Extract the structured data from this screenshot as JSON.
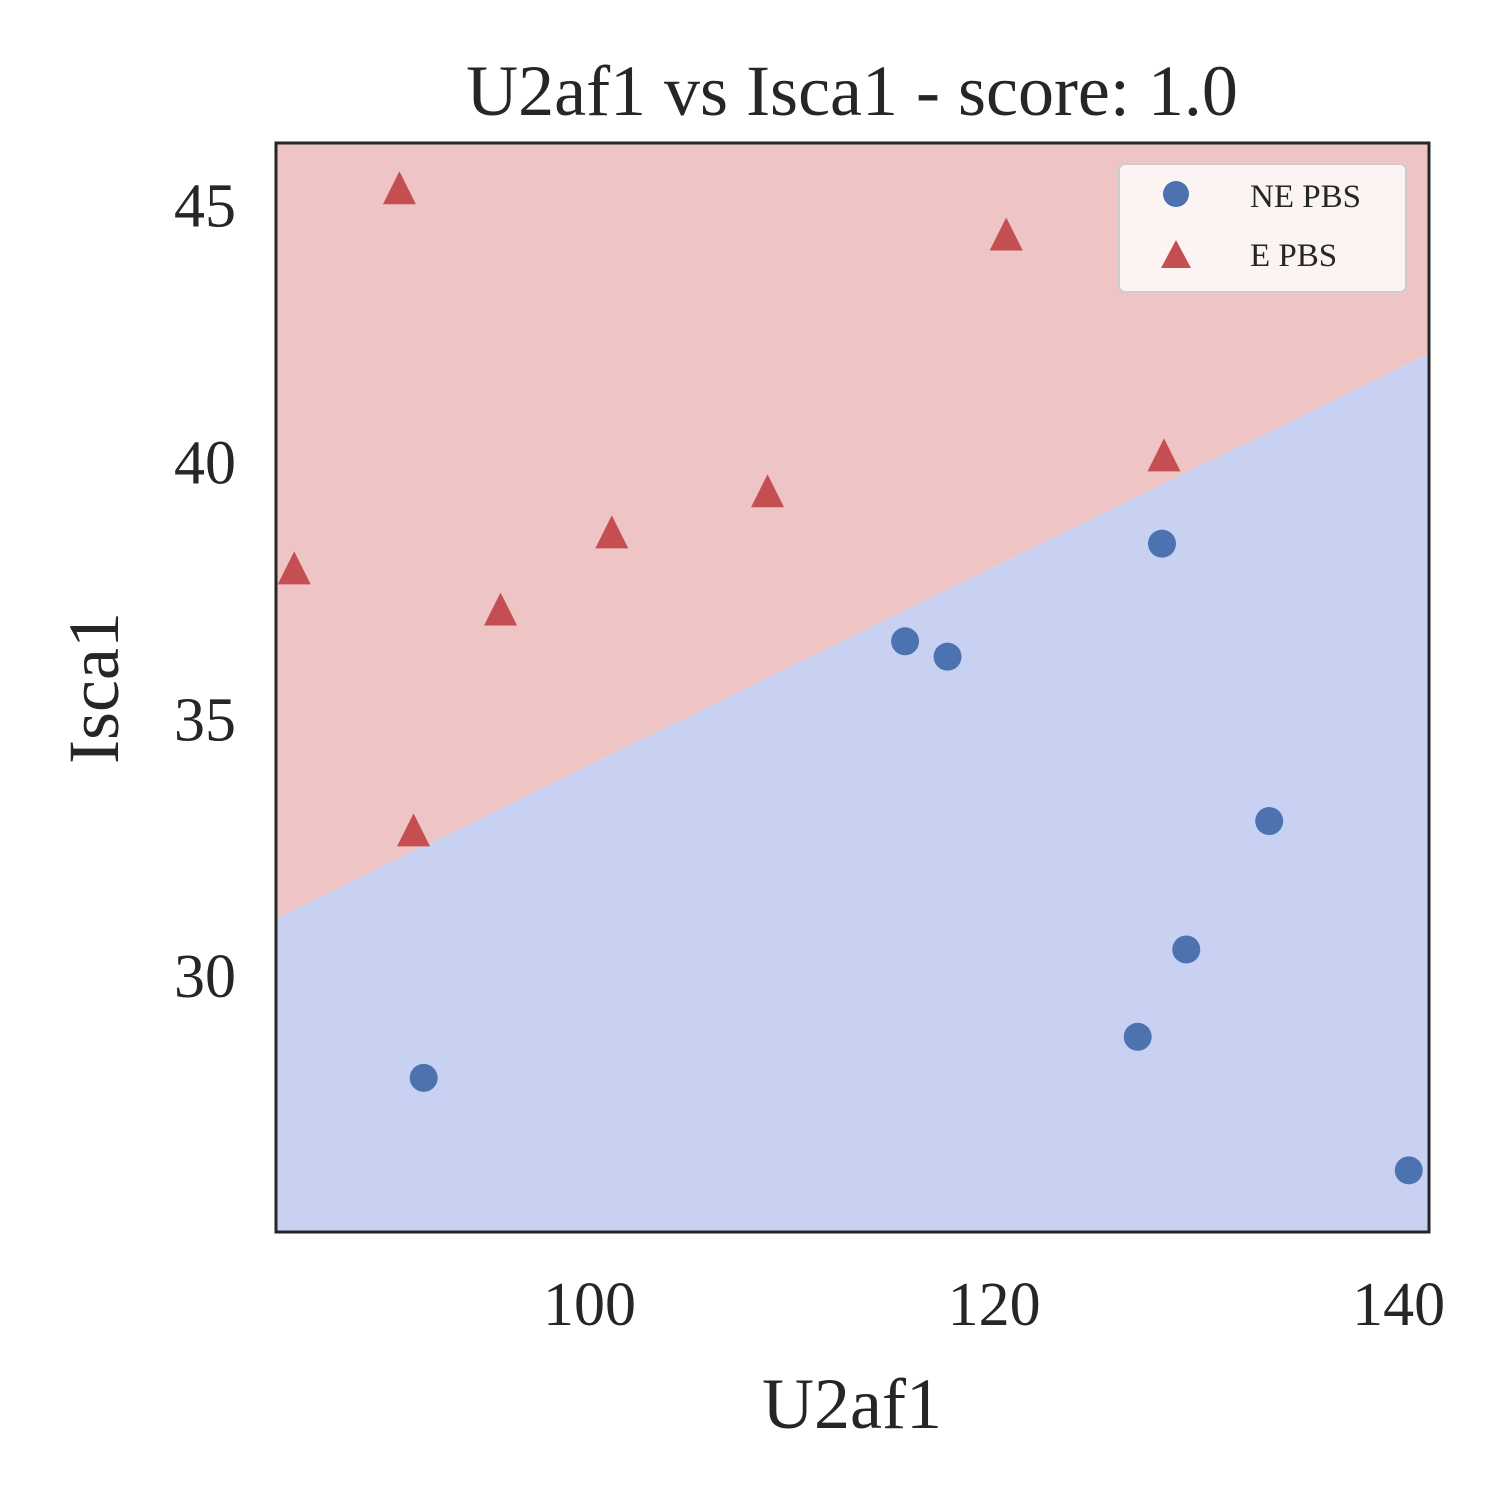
{
  "chart_data": {
    "type": "scatter",
    "title": "U2af1 vs Isca1 - score: 1.0",
    "xlabel": "U2af1",
    "ylabel": "Isca1",
    "xlim": [
      84.5,
      141.5
    ],
    "ylim": [
      25.0,
      46.2
    ],
    "xticks": [
      100,
      120,
      140
    ],
    "yticks": [
      30,
      35,
      40,
      45
    ],
    "grid": false,
    "legend_position": "top-right",
    "decision_boundary": {
      "points": [
        [
          84.5,
          31.1
        ],
        [
          141.5,
          42.1
        ]
      ],
      "upper_region_color": "#eec4c4",
      "lower_region_color": "#c9d1f2"
    },
    "series": [
      {
        "name": "NE PBS",
        "marker": "circle",
        "color": "#4c72b0",
        "points": [
          [
            91.8,
            28.0
          ],
          [
            115.6,
            36.5
          ],
          [
            117.7,
            36.2
          ],
          [
            128.3,
            38.4
          ],
          [
            133.6,
            33.0
          ],
          [
            129.5,
            30.5
          ],
          [
            127.1,
            28.8
          ],
          [
            140.5,
            26.2
          ]
        ]
      },
      {
        "name": "E PBS",
        "marker": "triangle",
        "color": "#c44e52",
        "points": [
          [
            85.4,
            37.9
          ],
          [
            90.6,
            45.3
          ],
          [
            95.6,
            37.1
          ],
          [
            101.1,
            38.6
          ],
          [
            108.8,
            39.4
          ],
          [
            120.6,
            44.4
          ],
          [
            128.4,
            40.1
          ],
          [
            91.3,
            32.8
          ]
        ]
      }
    ]
  }
}
